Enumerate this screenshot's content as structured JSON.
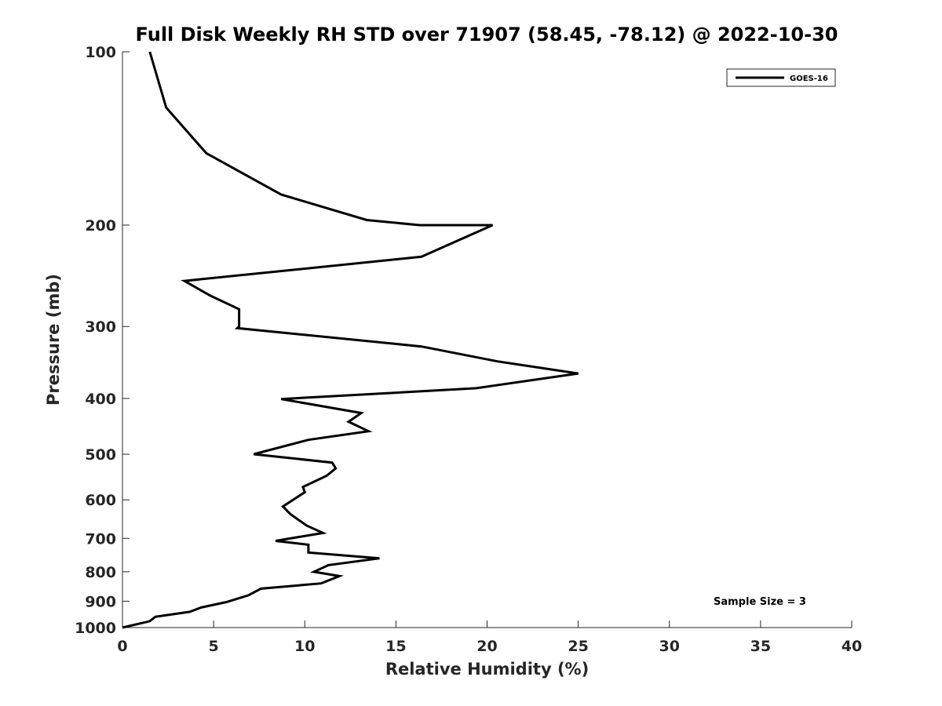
{
  "chart_data": {
    "type": "line",
    "title": "Full Disk Weekly RH STD over 71907 (58.45, -78.12) @ 2022-10-30",
    "xlabel": "Relative Humidity (%)",
    "ylabel": "Pressure (mb)",
    "xlim": [
      0,
      40
    ],
    "ylim": [
      100,
      1000
    ],
    "y_scale": "log",
    "y_reversed": true,
    "grid": false,
    "legend_position": "top-right",
    "x_ticks": [
      "0",
      "5",
      "10",
      "15",
      "20",
      "25",
      "30",
      "35",
      "40"
    ],
    "y_ticks": [
      "100",
      "200",
      "300",
      "400",
      "500",
      "600",
      "700",
      "800",
      "900",
      "1000"
    ],
    "series": [
      {
        "name": "GOES-16",
        "color": "#000000",
        "points": [
          [
            1.5,
            100
          ],
          [
            2.4,
            125
          ],
          [
            4.6,
            150
          ],
          [
            8.7,
            177
          ],
          [
            13.4,
            196
          ],
          [
            16.3,
            200
          ],
          [
            20.3,
            200
          ],
          [
            16.4,
            227
          ],
          [
            3.4,
            250
          ],
          [
            4.8,
            265
          ],
          [
            6.4,
            280
          ],
          [
            6.4,
            300
          ],
          [
            6.3,
            302
          ],
          [
            16.4,
            325
          ],
          [
            20.6,
            345
          ],
          [
            25.0,
            362
          ],
          [
            19.4,
            384
          ],
          [
            8.7,
            401
          ],
          [
            13.1,
            424
          ],
          [
            12.4,
            439
          ],
          [
            13.5,
            456
          ],
          [
            10.2,
            472
          ],
          [
            7.2,
            500
          ],
          [
            11.5,
            517
          ],
          [
            11.7,
            529
          ],
          [
            11.2,
            545
          ],
          [
            9.9,
            570
          ],
          [
            10.0,
            582
          ],
          [
            8.8,
            616
          ],
          [
            9.2,
            635
          ],
          [
            10.1,
            665
          ],
          [
            11.0,
            685
          ],
          [
            8.4,
            707
          ],
          [
            10.2,
            718
          ],
          [
            10.2,
            741
          ],
          [
            14.1,
            758
          ],
          [
            11.3,
            779
          ],
          [
            10.5,
            800
          ],
          [
            11.9,
            814
          ],
          [
            10.9,
            838
          ],
          [
            7.6,
            856
          ],
          [
            6.9,
            879
          ],
          [
            5.7,
            903
          ],
          [
            4.3,
            923
          ],
          [
            3.7,
            939
          ],
          [
            1.8,
            958
          ],
          [
            1.5,
            975
          ],
          [
            0,
            1000
          ]
        ]
      }
    ],
    "annotations": [
      "Sample Size = 3"
    ]
  }
}
